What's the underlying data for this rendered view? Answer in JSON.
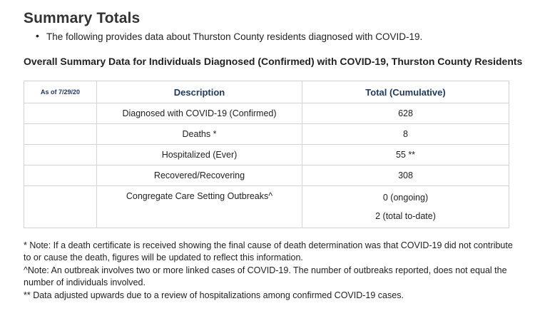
{
  "title": "Summary Totals",
  "intro": "The following provides data about Thurston County residents diagnosed with COVID-19.",
  "subtitle": "Overall Summary Data for Individuals Diagnosed (Confirmed) with COVID-19, Thurston County Residents",
  "table": {
    "date_header": "As of 7/29/20",
    "desc_header": "Description",
    "total_header": "Total (Cumulative)",
    "rows": [
      {
        "desc": "Diagnosed with COVID-19 (Confirmed)",
        "total": "628"
      },
      {
        "desc": "Deaths *",
        "total": "8"
      },
      {
        "desc": "Hospitalized (Ever)",
        "total": "55 **"
      },
      {
        "desc": "Recovered/Recovering",
        "total": "308"
      },
      {
        "desc": "Congregate Care Setting Outbreaks^",
        "total_line1": "0 (ongoing)",
        "total_line2": "2 (total to-date)"
      }
    ]
  },
  "notes": {
    "note1": "* Note: If a death certificate is received showing the final cause of death determination was that COVID-19 did not contribute to or cause the death, figures will be updated to reflect this information.",
    "note2": "^Note: An outbreak involves two or more linked cases of COVID-19. The number of outbreaks reported, does not equal the number of individuals involved.",
    "note3": "** Data adjusted upwards due to a review of hospitalizations among confirmed COVID-19 cases."
  }
}
